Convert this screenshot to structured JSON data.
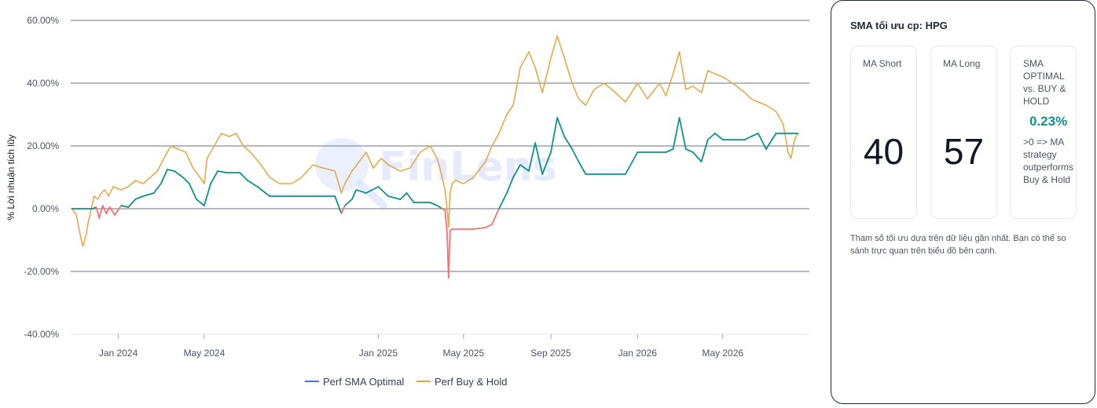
{
  "chart_data": {
    "type": "line",
    "ylabel": "% Lời nhuận tích lũy",
    "ylim": [
      -40,
      60
    ],
    "yticks": [
      60,
      40,
      20,
      0,
      -20,
      -40
    ],
    "ytick_labels": [
      "60.00%",
      "40.00%",
      "20.00%",
      "0.00%",
      "-20.00%",
      "-40.00%"
    ],
    "xlim": [
      "2023-10-26",
      "2026-08-31"
    ],
    "xticks": [
      "2024-01-01",
      "2024-05-01",
      "2025-01-01",
      "2025-05-01",
      "2025-09-01",
      "2026-01-01",
      "2026-05-01"
    ],
    "xtick_labels": [
      "Jan 2024",
      "May 2024",
      "Jan 2025",
      "May 2025",
      "Sep 2025",
      "Jan 2026",
      "May 2026"
    ],
    "grid": "horizontal",
    "legend_position": "bottom",
    "watermark": "FinLens",
    "colors": {
      "sma_positive": "#0d9488",
      "sma_negative": "#f87171",
      "buy_hold": "#e5a94a",
      "sma_legend": "#4f6ef7"
    },
    "series": [
      {
        "name": "Perf SMA Optimal",
        "x": [
          "2023-10-28",
          "2023-11-12",
          "2023-11-26",
          "2023-12-01",
          "2023-12-05",
          "2023-12-10",
          "2023-12-15",
          "2023-12-20",
          "2023-12-27",
          "2024-01-05",
          "2024-01-15",
          "2024-01-25",
          "2024-02-05",
          "2024-02-20",
          "2024-03-01",
          "2024-03-10",
          "2024-03-20",
          "2024-04-01",
          "2024-04-10",
          "2024-04-20",
          "2024-05-01",
          "2024-05-10",
          "2024-05-20",
          "2024-06-01",
          "2024-06-10",
          "2024-06-20",
          "2024-07-01",
          "2024-07-15",
          "2024-08-01",
          "2024-08-15",
          "2024-09-01",
          "2024-10-01",
          "2024-11-01",
          "2024-11-10",
          "2024-11-15",
          "2024-11-25",
          "2024-12-01",
          "2024-12-15",
          "2025-01-01",
          "2025-01-15",
          "2025-02-01",
          "2025-02-10",
          "2025-02-20",
          "2025-03-01",
          "2025-03-15",
          "2025-03-25",
          "2025-04-01",
          "2025-04-05",
          "2025-04-08",
          "2025-04-10",
          "2025-04-12",
          "2025-04-15",
          "2025-04-20",
          "2025-05-01",
          "2025-05-15",
          "2025-06-01",
          "2025-06-10",
          "2025-06-20",
          "2025-07-01",
          "2025-07-10",
          "2025-07-20",
          "2025-08-01",
          "2025-08-10",
          "2025-08-20",
          "2025-09-01",
          "2025-09-10",
          "2025-09-20",
          "2025-10-01",
          "2025-10-10",
          "2025-10-20",
          "2025-11-01",
          "2025-11-15",
          "2025-12-01",
          "2025-12-15",
          "2026-01-01",
          "2026-01-15",
          "2026-02-01",
          "2026-02-10",
          "2026-02-20",
          "2026-03-01",
          "2026-03-10",
          "2026-03-20",
          "2026-04-01",
          "2026-04-10",
          "2026-04-20",
          "2026-05-01",
          "2026-05-15",
          "2026-06-01",
          "2026-06-10",
          "2026-06-20",
          "2026-07-01",
          "2026-07-15",
          "2026-08-01",
          "2026-08-15"
        ],
        "values": [
          0.0,
          0.0,
          0.0,
          0.5,
          -3.0,
          1.0,
          -1.5,
          0.5,
          -2.0,
          1.0,
          0.5,
          3.0,
          4.0,
          5.0,
          8.0,
          12.5,
          12.0,
          10.0,
          8.0,
          3.0,
          1.0,
          8.0,
          12.0,
          11.5,
          11.5,
          11.5,
          9.0,
          7.0,
          4.0,
          4.0,
          4.0,
          4.0,
          4.0,
          -1.5,
          1.0,
          3.0,
          6.0,
          5.0,
          7.0,
          4.0,
          3.0,
          5.0,
          2.0,
          2.0,
          2.0,
          1.0,
          0.0,
          -0.5,
          -8.0,
          -22.0,
          -7.0,
          -6.5,
          -6.5,
          -6.5,
          -6.5,
          -6.0,
          -5.0,
          0.0,
          5.0,
          10.0,
          14.0,
          12.0,
          21.0,
          11.0,
          18.0,
          29.0,
          23.0,
          19.0,
          15.0,
          11.0,
          11.0,
          11.0,
          11.0,
          11.0,
          18.0,
          18.0,
          18.0,
          18.0,
          19.0,
          29.0,
          19.0,
          18.0,
          15.0,
          22.0,
          24.0,
          22.0,
          22.0,
          22.0,
          23.0,
          24.0,
          19.0,
          24.0,
          24.0,
          24.0
        ]
      },
      {
        "name": "Perf Buy & Hold",
        "x": [
          "2023-10-28",
          "2023-11-03",
          "2023-11-08",
          "2023-11-12",
          "2023-11-16",
          "2023-11-20",
          "2023-11-24",
          "2023-11-28",
          "2023-12-03",
          "2023-12-08",
          "2023-12-13",
          "2023-12-18",
          "2023-12-25",
          "2024-01-05",
          "2024-01-15",
          "2024-01-25",
          "2024-02-05",
          "2024-02-15",
          "2024-02-25",
          "2024-03-05",
          "2024-03-15",
          "2024-03-25",
          "2024-04-05",
          "2024-04-15",
          "2024-04-25",
          "2024-05-01",
          "2024-05-05",
          "2024-05-15",
          "2024-05-25",
          "2024-06-05",
          "2024-06-15",
          "2024-06-25",
          "2024-07-05",
          "2024-07-20",
          "2024-08-01",
          "2024-08-15",
          "2024-09-01",
          "2024-09-15",
          "2024-10-01",
          "2024-10-15",
          "2024-11-01",
          "2024-11-10",
          "2024-11-15",
          "2024-11-25",
          "2024-12-05",
          "2024-12-15",
          "2024-12-25",
          "2025-01-05",
          "2025-01-15",
          "2025-02-01",
          "2025-02-15",
          "2025-03-01",
          "2025-03-15",
          "2025-03-25",
          "2025-04-01",
          "2025-04-05",
          "2025-04-08",
          "2025-04-10",
          "2025-04-12",
          "2025-04-15",
          "2025-04-20",
          "2025-05-01",
          "2025-05-15",
          "2025-06-01",
          "2025-06-10",
          "2025-06-20",
          "2025-07-01",
          "2025-07-10",
          "2025-07-20",
          "2025-08-01",
          "2025-08-10",
          "2025-08-20",
          "2025-09-01",
          "2025-09-10",
          "2025-09-20",
          "2025-10-01",
          "2025-10-10",
          "2025-10-20",
          "2025-11-01",
          "2025-11-15",
          "2025-12-01",
          "2025-12-15",
          "2026-01-01",
          "2026-01-15",
          "2026-02-01",
          "2026-02-10",
          "2026-02-20",
          "2026-03-01",
          "2026-03-10",
          "2026-03-20",
          "2026-04-01",
          "2026-04-10",
          "2026-04-20",
          "2026-05-01",
          "2026-05-15",
          "2026-06-01",
          "2026-06-10",
          "2026-06-20",
          "2026-07-01",
          "2026-07-15",
          "2026-07-25",
          "2026-08-01",
          "2026-08-05",
          "2026-08-10",
          "2026-08-15"
        ],
        "values": [
          0.0,
          -2.0,
          -8.0,
          -12.0,
          -9.0,
          -4.0,
          0.0,
          4.0,
          3.0,
          5.0,
          6.0,
          4.0,
          7.0,
          6.0,
          7.0,
          9.0,
          8.0,
          10.0,
          12.0,
          16.0,
          20.0,
          19.0,
          18.0,
          13.0,
          10.0,
          8.0,
          16.0,
          20.0,
          24.0,
          23.0,
          24.0,
          20.0,
          18.0,
          14.0,
          10.0,
          8.0,
          8.0,
          10.0,
          14.0,
          13.0,
          12.0,
          5.0,
          8.0,
          12.0,
          15.0,
          18.0,
          13.0,
          16.0,
          14.0,
          12.0,
          13.0,
          18.0,
          20.0,
          16.0,
          10.0,
          6.0,
          0.0,
          -6.0,
          5.0,
          8.0,
          9.0,
          8.0,
          10.0,
          15.0,
          20.0,
          24.0,
          30.0,
          33.0,
          45.0,
          50.0,
          45.0,
          37.0,
          48.0,
          55.0,
          48.0,
          40.0,
          35.0,
          33.0,
          38.0,
          40.0,
          37.0,
          34.0,
          40.0,
          35.0,
          40.0,
          36.0,
          43.0,
          50.0,
          38.0,
          39.0,
          37.0,
          44.0,
          43.0,
          42.0,
          40.0,
          37.0,
          35.0,
          34.0,
          33.0,
          31.0,
          27.0,
          18.0,
          16.0,
          22.0,
          24.0
        ]
      }
    ]
  },
  "panel": {
    "title": "SMA tối ưu cp: HPG",
    "ma_short": {
      "label": "MA Short",
      "value": "40"
    },
    "ma_long": {
      "label": "MA Long",
      "value": "57"
    },
    "perf": {
      "label": "SMA OPTIMAL vs. BUY & HOLD",
      "value": "0.23%",
      "note": ">0 => MA strategy outperforms Buy & Hold"
    },
    "note": "Tham số tối ưu dựa trên dữ liệu gần nhất. Bạn có thể so sánh trực quan trên biểu đồ bên cạnh."
  }
}
